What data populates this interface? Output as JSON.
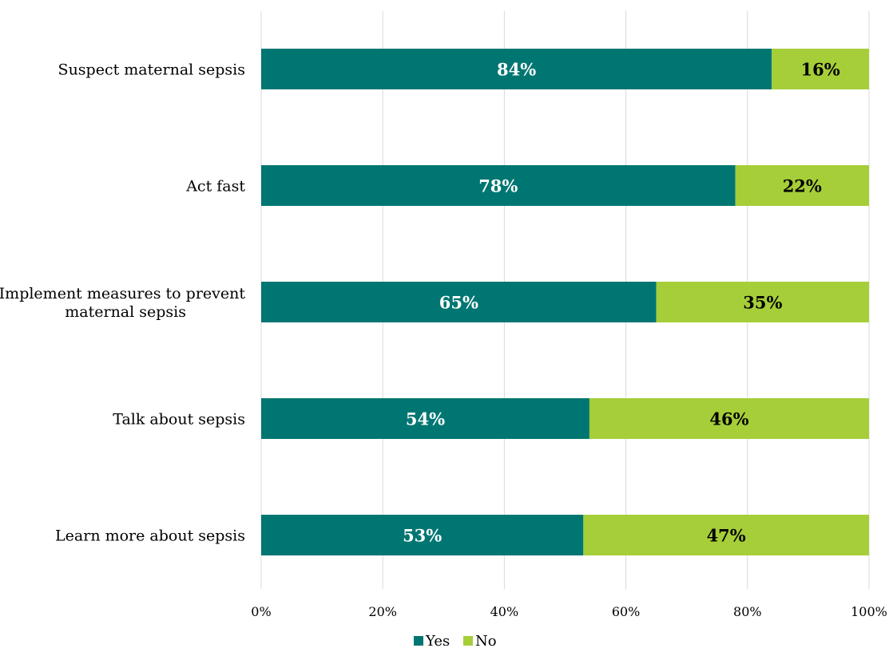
{
  "chart_data": {
    "type": "bar",
    "orientation": "horizontal",
    "stacked": true,
    "categories": [
      "Suspect maternal sepsis",
      "Act fast",
      "Implement measures to prevent maternal sepsis",
      "Talk about sepsis",
      "Learn more about sepsis"
    ],
    "series": [
      {
        "name": "Yes",
        "color": "#007672",
        "label_color": "#ffffff",
        "values": [
          84,
          78,
          65,
          54,
          53
        ],
        "labels": [
          "84%",
          "78%",
          "65%",
          "54%",
          "53%"
        ]
      },
      {
        "name": "No",
        "color": "#a6ce39",
        "label_color": "#000000",
        "values": [
          16,
          22,
          35,
          46,
          47
        ],
        "labels": [
          "16%",
          "22%",
          "35%",
          "46%",
          "47%"
        ]
      }
    ],
    "title": "",
    "xlabel": "",
    "ylabel": "",
    "xlim": [
      0,
      100
    ],
    "x_ticks": [
      "0%",
      "20%",
      "40%",
      "60%",
      "80%",
      "100%"
    ],
    "grid": true,
    "legend_position": "bottom"
  }
}
